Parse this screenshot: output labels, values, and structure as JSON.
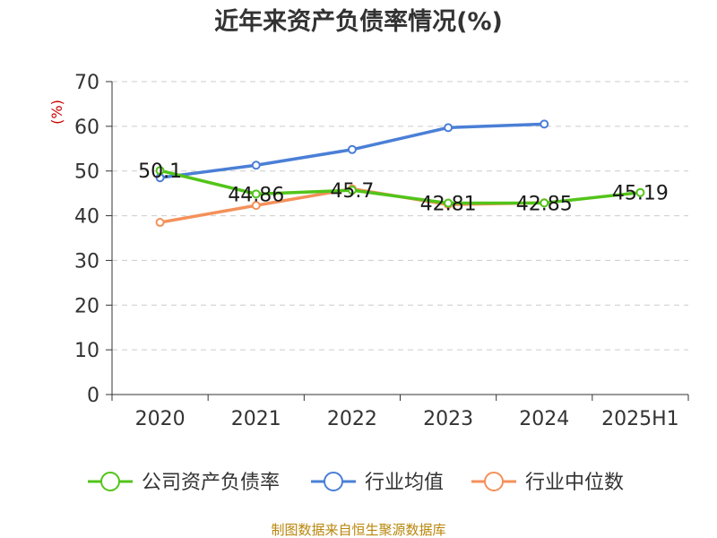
{
  "chart_data": {
    "type": "line",
    "title": "近年来资产负债率情况(%)",
    "ylabel": "(%)",
    "ylim": [
      0,
      70
    ],
    "yticks": [
      0,
      10,
      20,
      30,
      40,
      50,
      60,
      70
    ],
    "categories": [
      "2020",
      "2021",
      "2022",
      "2023",
      "2024",
      "2025H1"
    ],
    "grid": true,
    "legend_position": "bottom",
    "series": [
      {
        "name": "公司资产负债率",
        "color": "#52c41a",
        "values": [
          50.1,
          44.86,
          45.7,
          42.81,
          42.85,
          45.19
        ],
        "labels": [
          "50.1",
          "44.86",
          "45.7",
          "42.81",
          "42.85",
          "45.19"
        ]
      },
      {
        "name": "行业均值",
        "color": "#4a7fd6",
        "values": [
          48.5,
          51.3,
          54.8,
          59.7,
          60.5,
          null
        ],
        "labels": []
      },
      {
        "name": "行业中位数",
        "color": "#f4905a",
        "values": [
          38.5,
          42.3,
          46.0,
          42.5,
          42.9,
          null
        ],
        "labels": []
      }
    ]
  },
  "source_text": "制图数据来自恒生聚源数据库"
}
